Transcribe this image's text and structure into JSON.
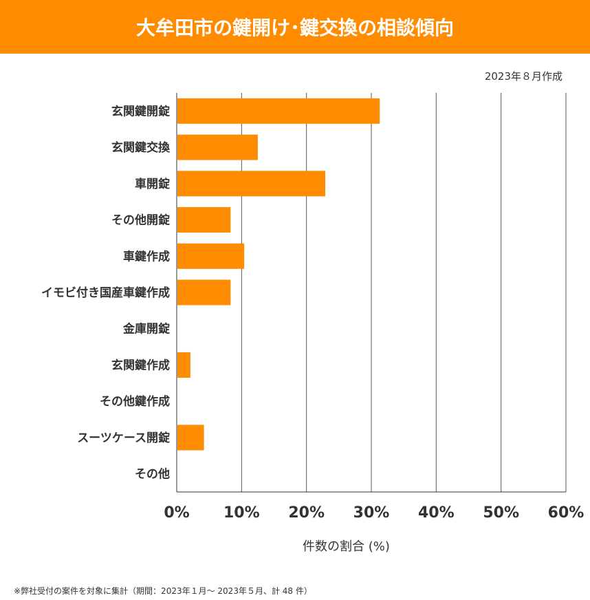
{
  "title": "大牟田市の鍵開け･鍵交換の相談傾向",
  "date_note": "2023年８月作成",
  "footnote": "※弊社受付の案件を対象に集計（期間：2023年１月～ 2023年５月、計 48 件）",
  "chart_data": {
    "type": "bar",
    "orientation": "horizontal",
    "categories": [
      "玄関鍵開錠",
      "玄関鍵交換",
      "車開錠",
      "その他開錠",
      "車鍵作成",
      "イモビ付き国産車鍵作成",
      "金庫開錠",
      "玄関鍵作成",
      "その他鍵作成",
      "スーツケース開錠",
      "その他"
    ],
    "values": [
      31.3,
      12.5,
      22.9,
      8.3,
      10.4,
      8.3,
      0,
      2.1,
      0,
      4.2,
      0
    ],
    "xlabel": "件数の割合 (%)",
    "xlim": [
      0,
      60
    ],
    "xticks": [
      "0%",
      "10%",
      "20%",
      "30%",
      "40%",
      "50%",
      "60%"
    ],
    "grid": true,
    "bar_color": "#FF8C00"
  }
}
